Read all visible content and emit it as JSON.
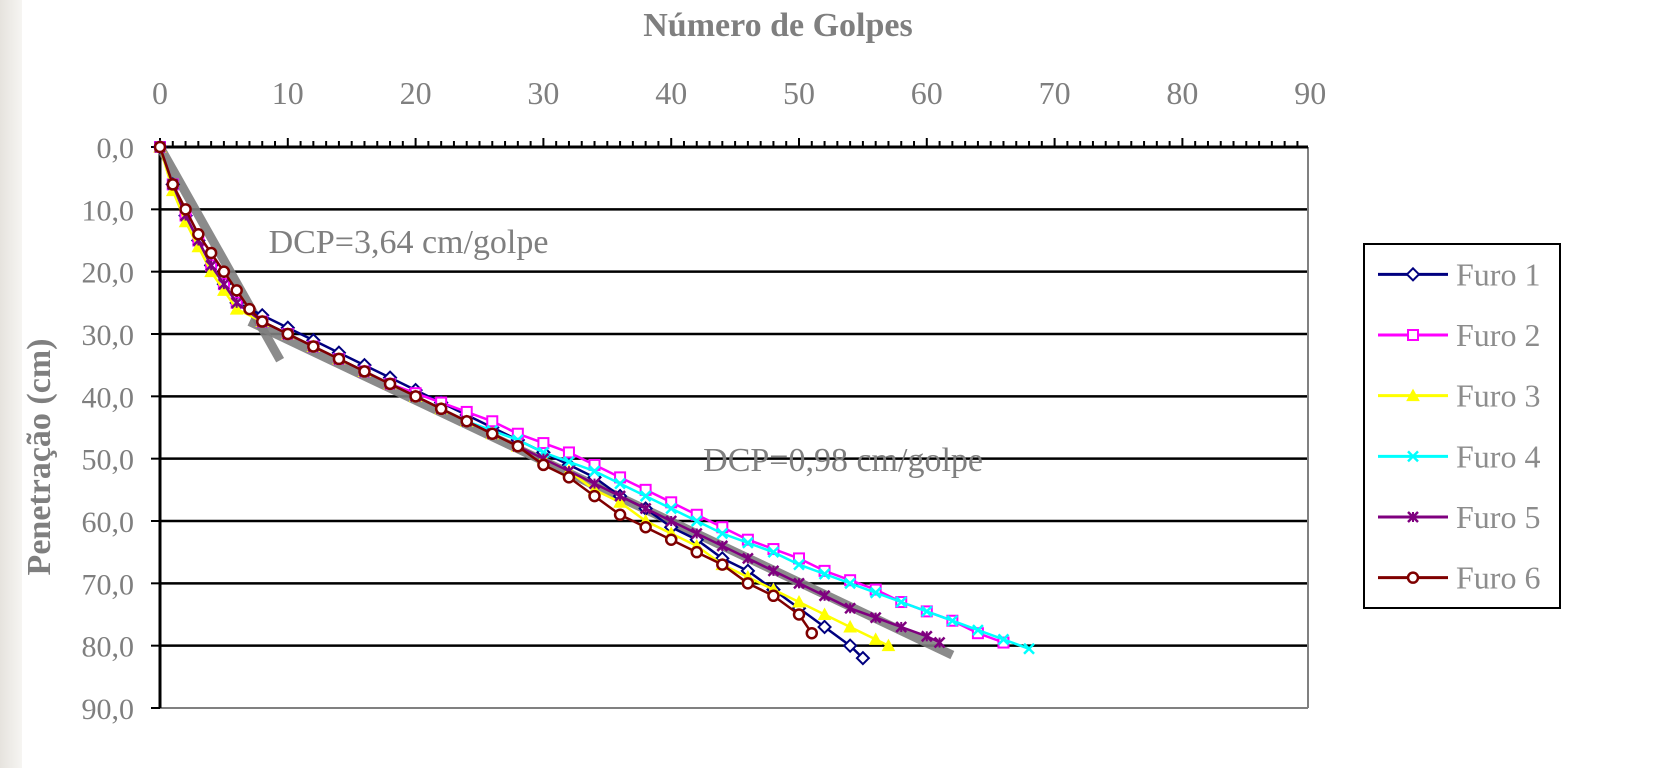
{
  "chart_data": {
    "type": "line",
    "title": "",
    "xlabel": "Número de Golpes",
    "ylabel": "Penetração (cm)",
    "x_axis_position": "top",
    "y_axis_inverted": true,
    "xlim": [
      0,
      90
    ],
    "ylim": [
      0,
      90
    ],
    "x_ticks": [
      "0",
      "10",
      "20",
      "30",
      "40",
      "50",
      "60",
      "70",
      "80",
      "90"
    ],
    "y_ticks": [
      "0,0",
      "10,0",
      "20,0",
      "30,0",
      "40,0",
      "50,0",
      "60,0",
      "70,0",
      "80,0",
      "90,0"
    ],
    "grid": "horizontal",
    "legend_position": "right",
    "series": [
      {
        "name": "Furo 1",
        "color": "#00007f",
        "marker": "diamond",
        "points": [
          [
            0,
            0
          ],
          [
            1,
            6
          ],
          [
            2,
            11
          ],
          [
            3,
            15
          ],
          [
            4,
            19
          ],
          [
            5,
            22
          ],
          [
            6,
            25
          ],
          [
            8,
            27
          ],
          [
            10,
            29
          ],
          [
            12,
            31
          ],
          [
            14,
            33
          ],
          [
            16,
            35
          ],
          [
            18,
            37
          ],
          [
            20,
            39
          ],
          [
            22,
            41
          ],
          [
            24,
            43
          ],
          [
            26,
            45
          ],
          [
            28,
            47
          ],
          [
            30,
            49
          ],
          [
            32,
            51
          ],
          [
            34,
            53
          ],
          [
            36,
            56
          ],
          [
            38,
            58
          ],
          [
            40,
            61
          ],
          [
            42,
            63
          ],
          [
            44,
            66
          ],
          [
            46,
            68
          ],
          [
            48,
            71
          ],
          [
            50,
            74
          ],
          [
            52,
            77
          ],
          [
            54,
            80
          ],
          [
            55,
            82
          ]
        ]
      },
      {
        "name": "Furo 2",
        "color": "#ff00ff",
        "marker": "square",
        "points": [
          [
            0,
            0
          ],
          [
            1,
            6
          ],
          [
            2,
            11
          ],
          [
            3,
            15
          ],
          [
            4,
            19
          ],
          [
            5,
            22
          ],
          [
            6,
            25
          ],
          [
            8,
            28
          ],
          [
            10,
            30
          ],
          [
            12,
            32
          ],
          [
            14,
            34
          ],
          [
            16,
            36
          ],
          [
            18,
            38
          ],
          [
            20,
            39.5
          ],
          [
            22,
            41
          ],
          [
            24,
            42.5
          ],
          [
            26,
            44
          ],
          [
            28,
            46
          ],
          [
            30,
            47.5
          ],
          [
            32,
            49
          ],
          [
            34,
            51
          ],
          [
            36,
            53
          ],
          [
            38,
            55
          ],
          [
            40,
            57
          ],
          [
            42,
            59
          ],
          [
            44,
            61
          ],
          [
            46,
            63
          ],
          [
            48,
            64.5
          ],
          [
            50,
            66
          ],
          [
            52,
            68
          ],
          [
            54,
            69.5
          ],
          [
            56,
            71
          ],
          [
            58,
            73
          ],
          [
            60,
            74.5
          ],
          [
            62,
            76
          ],
          [
            64,
            78
          ],
          [
            66,
            79.5
          ]
        ]
      },
      {
        "name": "Furo 3",
        "color": "#ffff00",
        "marker": "triangle",
        "points": [
          [
            0,
            0
          ],
          [
            1,
            7
          ],
          [
            2,
            12
          ],
          [
            3,
            16
          ],
          [
            4,
            20
          ],
          [
            5,
            23
          ],
          [
            6,
            26
          ],
          [
            8,
            28
          ],
          [
            10,
            30
          ],
          [
            12,
            32
          ],
          [
            14,
            34
          ],
          [
            16,
            36
          ],
          [
            18,
            38
          ],
          [
            20,
            40
          ],
          [
            22,
            42
          ],
          [
            24,
            44
          ],
          [
            26,
            46
          ],
          [
            28,
            48
          ],
          [
            30,
            50
          ],
          [
            32,
            52
          ],
          [
            34,
            55
          ],
          [
            36,
            57
          ],
          [
            38,
            60
          ],
          [
            40,
            62
          ],
          [
            42,
            64
          ],
          [
            44,
            67
          ],
          [
            46,
            69
          ],
          [
            48,
            71
          ],
          [
            50,
            73
          ],
          [
            52,
            75
          ],
          [
            54,
            77
          ],
          [
            56,
            79
          ],
          [
            57,
            80
          ]
        ]
      },
      {
        "name": "Furo 4",
        "color": "#00ffff",
        "marker": "x",
        "points": [
          [
            0,
            0
          ],
          [
            1,
            6
          ],
          [
            2,
            11
          ],
          [
            3,
            15
          ],
          [
            4,
            19
          ],
          [
            5,
            22
          ],
          [
            6,
            25
          ],
          [
            8,
            28
          ],
          [
            10,
            30
          ],
          [
            12,
            32
          ],
          [
            14,
            34
          ],
          [
            16,
            36
          ],
          [
            18,
            38
          ],
          [
            20,
            40
          ],
          [
            22,
            42
          ],
          [
            24,
            44
          ],
          [
            26,
            45.5
          ],
          [
            28,
            47
          ],
          [
            30,
            49
          ],
          [
            32,
            50.5
          ],
          [
            34,
            52
          ],
          [
            36,
            54
          ],
          [
            38,
            56
          ],
          [
            40,
            58
          ],
          [
            42,
            60
          ],
          [
            44,
            62
          ],
          [
            46,
            63.5
          ],
          [
            48,
            65
          ],
          [
            50,
            67
          ],
          [
            52,
            68.5
          ],
          [
            54,
            70
          ],
          [
            56,
            71.5
          ],
          [
            58,
            73
          ],
          [
            60,
            74.5
          ],
          [
            62,
            76
          ],
          [
            64,
            77.5
          ],
          [
            66,
            79
          ],
          [
            68,
            80.5
          ]
        ]
      },
      {
        "name": "Furo 5",
        "color": "#7f007f",
        "marker": "star",
        "points": [
          [
            0,
            0
          ],
          [
            1,
            6
          ],
          [
            2,
            11
          ],
          [
            3,
            15
          ],
          [
            4,
            19
          ],
          [
            5,
            22
          ],
          [
            6,
            25
          ],
          [
            8,
            28
          ],
          [
            10,
            30
          ],
          [
            12,
            32
          ],
          [
            14,
            34
          ],
          [
            16,
            36
          ],
          [
            18,
            38
          ],
          [
            20,
            40
          ],
          [
            22,
            42
          ],
          [
            24,
            44
          ],
          [
            26,
            46
          ],
          [
            28,
            48
          ],
          [
            30,
            50
          ],
          [
            32,
            52
          ],
          [
            34,
            54
          ],
          [
            36,
            56
          ],
          [
            38,
            58
          ],
          [
            40,
            60
          ],
          [
            42,
            62
          ],
          [
            44,
            64
          ],
          [
            46,
            66
          ],
          [
            48,
            68
          ],
          [
            50,
            70
          ],
          [
            52,
            72
          ],
          [
            54,
            74
          ],
          [
            56,
            75.5
          ],
          [
            58,
            77
          ],
          [
            60,
            78.5
          ],
          [
            61,
            79.5
          ]
        ]
      },
      {
        "name": "Furo 6",
        "color": "#7f0000",
        "marker": "circle",
        "points": [
          [
            0,
            0
          ],
          [
            1,
            6
          ],
          [
            2,
            10
          ],
          [
            3,
            14
          ],
          [
            4,
            17
          ],
          [
            5,
            20
          ],
          [
            6,
            23
          ],
          [
            7,
            26
          ],
          [
            8,
            28
          ],
          [
            10,
            30
          ],
          [
            12,
            32
          ],
          [
            14,
            34
          ],
          [
            16,
            36
          ],
          [
            18,
            38
          ],
          [
            20,
            40
          ],
          [
            22,
            42
          ],
          [
            24,
            44
          ],
          [
            26,
            46
          ],
          [
            28,
            48
          ],
          [
            30,
            51
          ],
          [
            32,
            53
          ],
          [
            34,
            56
          ],
          [
            36,
            59
          ],
          [
            38,
            61
          ],
          [
            40,
            63
          ],
          [
            42,
            65
          ],
          [
            44,
            67
          ],
          [
            46,
            70
          ],
          [
            48,
            72
          ],
          [
            50,
            75
          ],
          [
            51,
            78
          ]
        ]
      }
    ],
    "trend_lines": [
      {
        "x": [
          0,
          9.4
        ],
        "y": [
          0,
          34.2
        ],
        "color": "#7f7f7f"
      },
      {
        "x": [
          7,
          62
        ],
        "y": [
          28,
          81.5
        ],
        "color": "#7f7f7f"
      }
    ],
    "annotations": [
      {
        "text": "DCP=3,64 cm/golpe",
        "x": 8.5,
        "y": 17
      },
      {
        "text": "DCP=0,98 cm/golpe",
        "x": 42.5,
        "y": 52
      }
    ]
  }
}
